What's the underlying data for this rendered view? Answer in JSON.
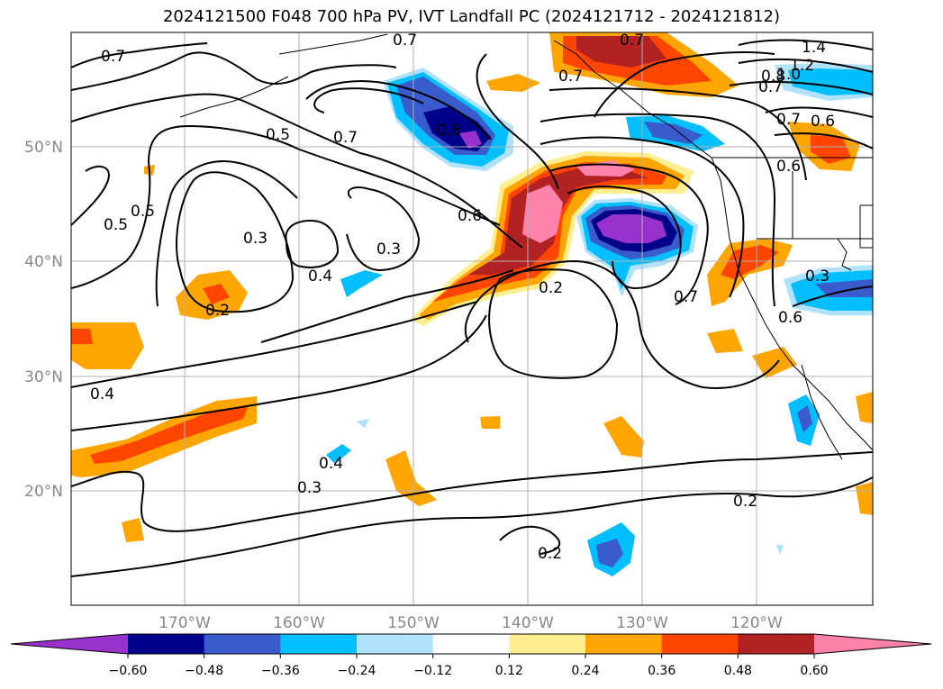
{
  "title": "2024121500 F048 700 hPa PV, IVT Landfall PC (2024121712 - 2024121812)",
  "lat_labels": [
    "50°N",
    "40°N",
    "30°N",
    "20°N"
  ],
  "lon_labels": [
    "170°W",
    "160°W",
    "150°W",
    "140°W",
    "130°W",
    "120°W"
  ],
  "contour_labels": [
    "0.7",
    "0.7",
    "0.7",
    "0.7",
    "1.4",
    "1.2",
    "1.0",
    "0.8",
    "0.7",
    "0.7",
    "0.6",
    "0.6",
    "0.6",
    "0.5",
    "0.5",
    "0.5",
    "0.7",
    "0.8",
    "0.3",
    "0.3",
    "0.4",
    "0.2",
    "0.2",
    "0.7",
    "0.3",
    "0.6",
    "0.4",
    "0.4",
    "0.3",
    "0.2",
    "0.2"
  ],
  "colorbar": {
    "ticks": [
      "−0.60",
      "−0.48",
      "−0.36",
      "−0.24",
      "−0.12",
      "0.12",
      "0.24",
      "0.36",
      "0.48",
      "0.60"
    ],
    "colors": [
      "#9932cc",
      "#00008b",
      "#3a5bcc",
      "#00bfff",
      "#b0e2ff",
      "#ffffff",
      "#ffee90",
      "#ffa500",
      "#ff4500",
      "#b22222",
      "#ff82ab"
    ]
  }
}
